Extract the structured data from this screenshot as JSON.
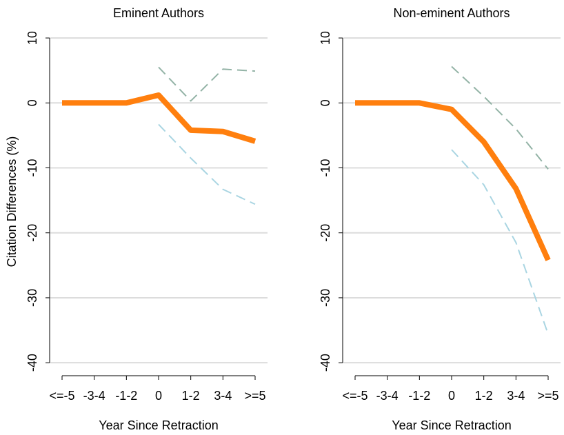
{
  "chart_data": [
    {
      "type": "line",
      "title": "Eminent Authors",
      "xlabel": "Year Since Retraction",
      "ylabel": "Citation Differences (%)",
      "categories": [
        "<=-5",
        "-3-4",
        "-1-2",
        "0",
        "1-2",
        "3-4",
        ">=5"
      ],
      "series": [
        {
          "color": "#93b3a6",
          "dash": true,
          "values": [
            null,
            null,
            null,
            5.5,
            0.3,
            5.2,
            4.9
          ]
        },
        {
          "color": "#a9d5e2",
          "dash": true,
          "values": [
            null,
            null,
            null,
            -3.3,
            -8.5,
            -13.3,
            -15.6
          ]
        },
        {
          "color": "#ff7f0e",
          "dash": false,
          "values": [
            0,
            0,
            0,
            1.2,
            -4.2,
            -4.4,
            -5.9
          ]
        }
      ],
      "ylim": [
        -42,
        11.6
      ],
      "yticks": [
        -40,
        -30,
        -20,
        -10,
        0,
        10
      ],
      "grid": true
    },
    {
      "type": "line",
      "title": "Non-eminent Authors",
      "xlabel": "Year Since Retraction",
      "categories": [
        "<=-5",
        "-3-4",
        "-1-2",
        "0",
        "1-2",
        "3-4",
        ">=5"
      ],
      "series": [
        {
          "color": "#93b3a6",
          "dash": true,
          "values": [
            null,
            null,
            null,
            5.6,
            1,
            -4,
            -10.2
          ]
        },
        {
          "color": "#a9d5e2",
          "dash": true,
          "values": [
            null,
            null,
            null,
            -7.2,
            -12.6,
            -21.5,
            -35.6
          ]
        },
        {
          "color": "#ff7f0e",
          "dash": false,
          "values": [
            0,
            0,
            0,
            -1,
            -6,
            -13.2,
            -24.2
          ]
        }
      ],
      "ylim": [
        -42,
        11.6
      ],
      "yticks": [
        -40,
        -30,
        -20,
        -10,
        0,
        10
      ],
      "grid": true
    }
  ]
}
